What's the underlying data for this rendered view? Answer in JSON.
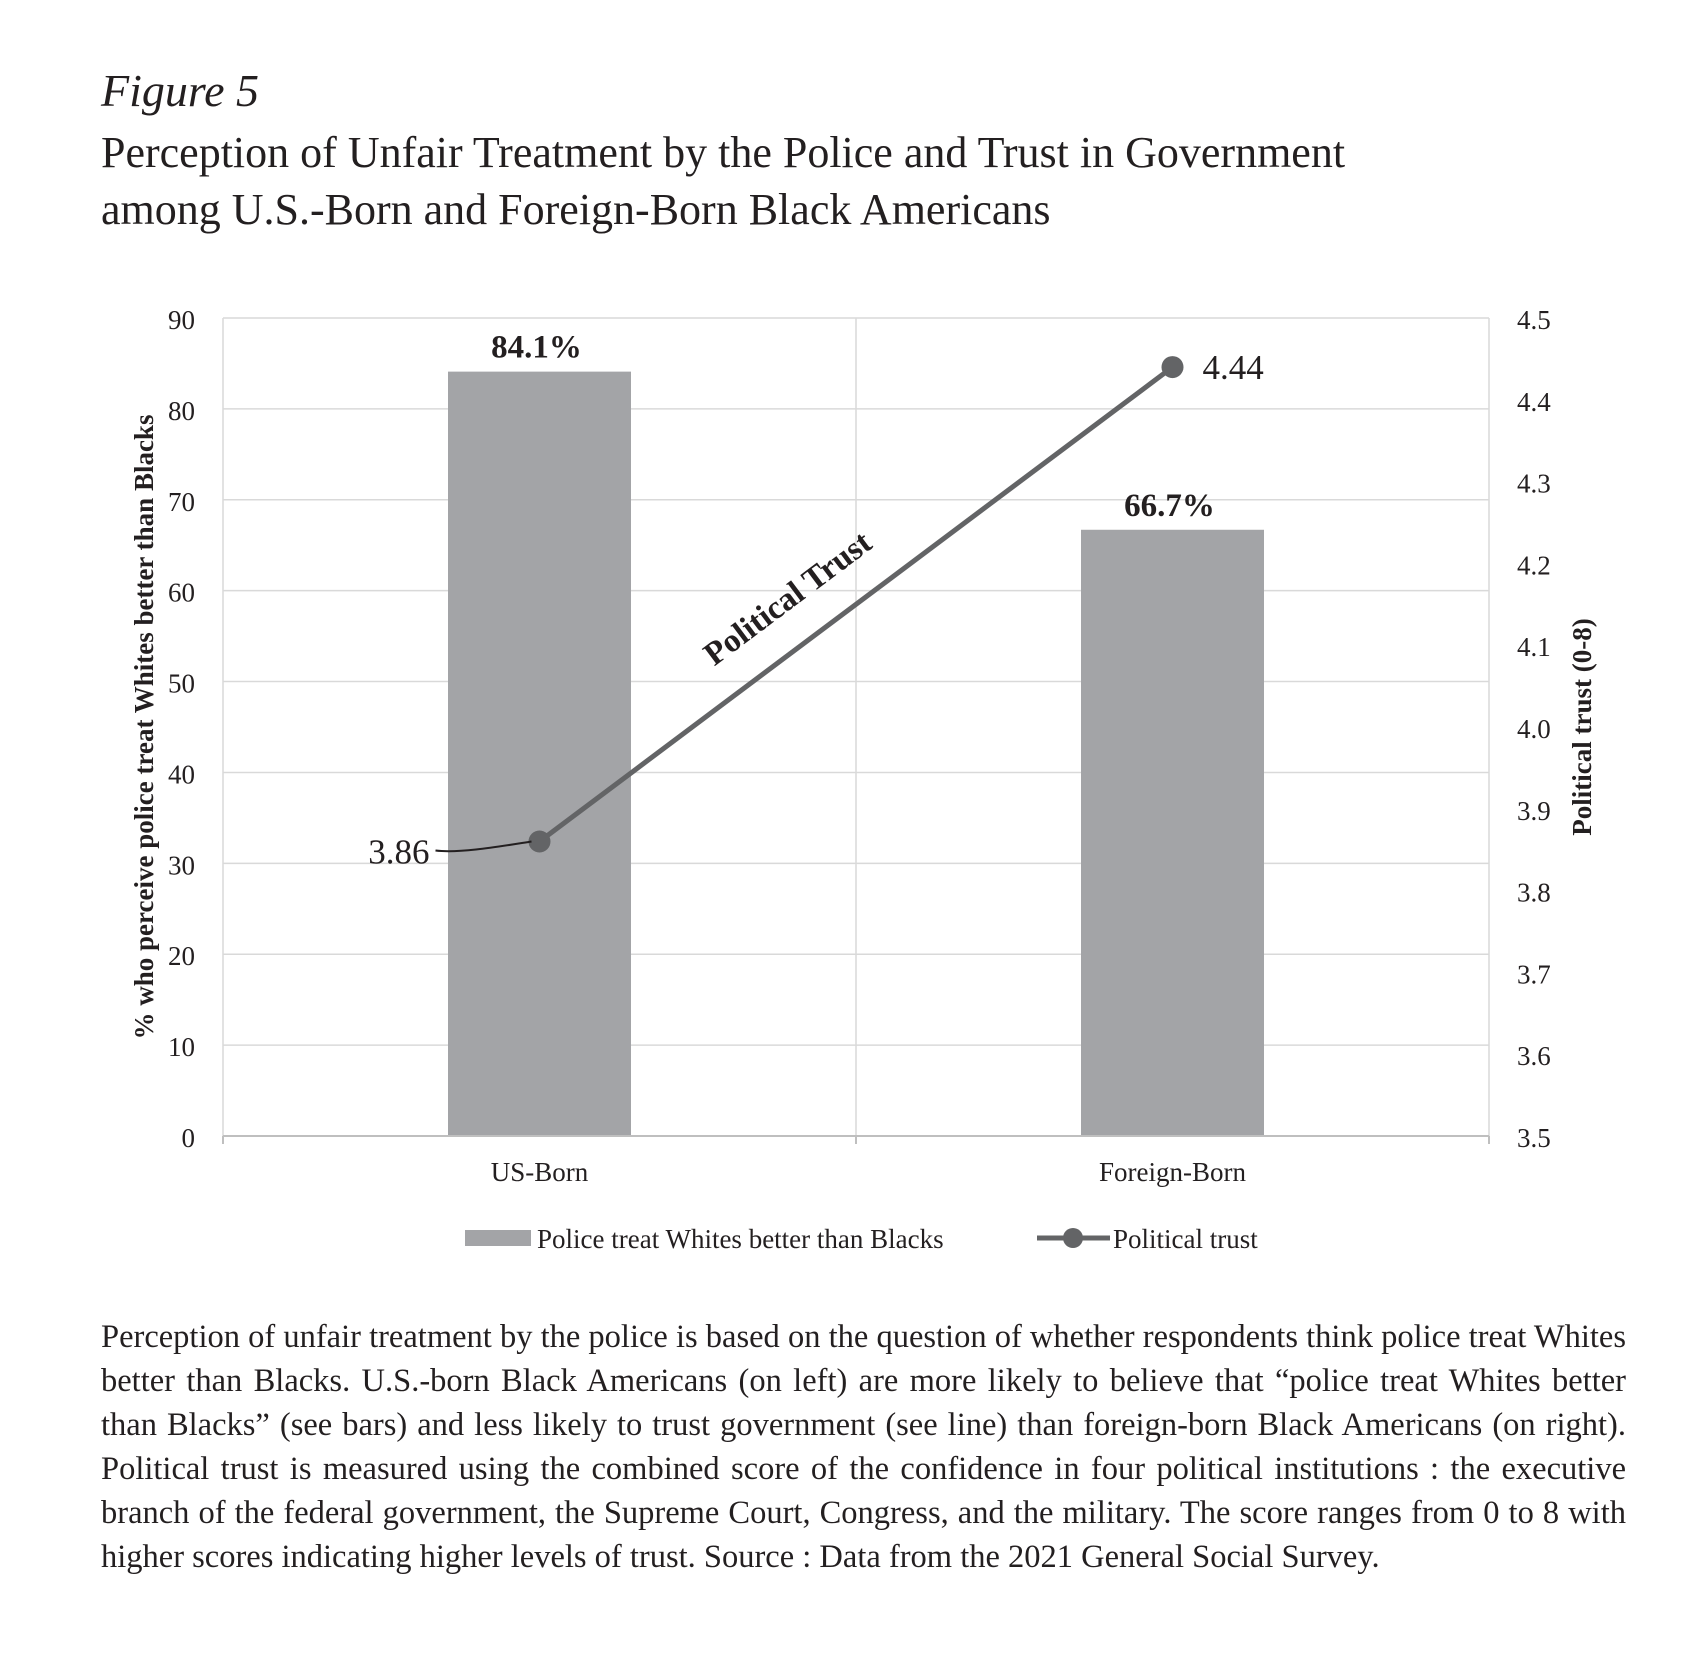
{
  "figure_label": "Figure 5",
  "title_line1": "Perception of Unfair Treatment by the Police and Trust in Government",
  "title_line2": "among U.S.-Born and Foreign-Born Black Americans",
  "chart_data": {
    "type": "bar",
    "categories": [
      "US-Born",
      "Foreign-Born"
    ],
    "y_left_label": "% who perceive police treat Whites better than Blacks",
    "y_right_label": "Political trust (0-8)",
    "ylim_left": [
      0,
      90
    ],
    "left_ticks": [
      "0",
      "10",
      "20",
      "30",
      "40",
      "50",
      "60",
      "70",
      "80",
      "90"
    ],
    "ylim_right": [
      3.5,
      4.5
    ],
    "right_ticks": [
      "3.5",
      "3.6",
      "3.7",
      "3.8",
      "3.9",
      "4.0",
      "4.1",
      "4.2",
      "4.3",
      "4.4",
      "4.5"
    ],
    "grid": true,
    "legend_position": "bottom",
    "series": [
      {
        "name": "Police treat Whites better than Blacks",
        "kind": "bar",
        "axis": "left",
        "values": [
          84.1,
          66.7
        ],
        "labels": [
          "84.1%",
          "66.7%"
        ],
        "color": "#a3a4a7"
      },
      {
        "name": "Political trust",
        "kind": "line",
        "axis": "right",
        "values": [
          3.86,
          4.44
        ],
        "labels": [
          "3.86",
          "4.44"
        ],
        "color": "#636466"
      }
    ],
    "annotations": [
      {
        "text": "Political Trust"
      }
    ]
  },
  "caption": "Perception of unfair treatment by the police is based on the question of whether respondents think police treat Whites better than Blacks. U.S.-born Black Americans (on left) are more likely to believe that “police treat Whites better than Blacks” (see bars) and less likely to trust government (see line) than foreign-born Black Americans (on right). Political trust is measured using the combined score of the confidence in four political institutions : the executive branch of the federal government, the Supreme Court, Congress, and the military. The score ranges from 0 to 8 with higher scores indicating higher levels of trust. Source : Data from the 2021 General Social Survey."
}
